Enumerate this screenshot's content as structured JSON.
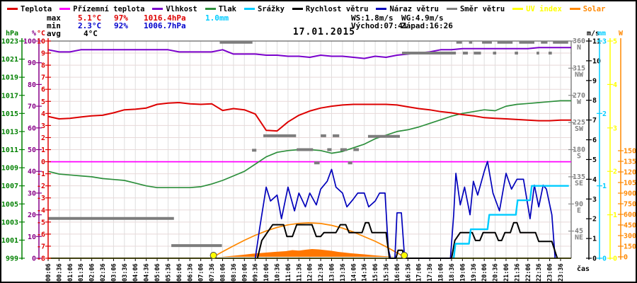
{
  "app": {
    "type": "weather-station-daily-graph"
  },
  "title": "17.01.2015",
  "legend": {
    "items": [
      {
        "label": "Teplota",
        "color": "#dd0000",
        "label_color": "#000000"
      },
      {
        "label": "Přízemní teplota",
        "color": "#ff00ff",
        "label_color": "#000000"
      },
      {
        "label": "Vlhkost",
        "color": "#7a00cc",
        "label_color": "#000000"
      },
      {
        "label": "Tlak",
        "color": "#2d8f3c",
        "label_color": "#000000"
      },
      {
        "label": "Srážky",
        "color": "#00ccff",
        "label_color": "#000000"
      },
      {
        "label": "Rychlost větru",
        "color": "#000000",
        "label_color": "#000000"
      },
      {
        "label": "Náraz větru",
        "color": "#0000bb",
        "label_color": "#000000"
      },
      {
        "label": "Směr větru",
        "color": "#808080",
        "label_color": "#000000"
      },
      {
        "label": "UV index",
        "color": "#ffff00",
        "label_color": "#ffff00"
      },
      {
        "label": "Solar",
        "color": "#ff8800",
        "label_color": "#ff8800"
      }
    ]
  },
  "stats": {
    "max": {
      "label": "max",
      "temp": "5.1°C",
      "humidity": "97%",
      "pressure": "1016.4hPa",
      "rain": "1.0mm"
    },
    "min": {
      "label": "min",
      "temp": "2.3°C",
      "humidity": "92%",
      "pressure": "1006.7hPa"
    },
    "avg": {
      "label": "avg",
      "temp": "4°C"
    },
    "wind_speed": "WS:1.8m/s",
    "wind_gust": "WG:4.9m/s",
    "sunrise": "Východ:07:41",
    "sunset": "Západ:16:26"
  },
  "xaxis": {
    "label": "čas"
  },
  "chart_data": {
    "type": "line",
    "title": "17.01.2015",
    "x_times": [
      "00:06",
      "00:36",
      "01:06",
      "01:36",
      "02:06",
      "02:36",
      "03:06",
      "03:36",
      "04:06",
      "04:36",
      "05:06",
      "05:36",
      "06:06",
      "06:36",
      "07:06",
      "07:36",
      "08:06",
      "08:36",
      "09:06",
      "09:36",
      "10:06",
      "10:36",
      "11:06",
      "11:36",
      "12:06",
      "12:36",
      "13:06",
      "13:36",
      "14:06",
      "14:36",
      "15:06",
      "15:36",
      "16:06",
      "16:36",
      "17:06",
      "17:36",
      "18:06",
      "18:36",
      "19:06",
      "19:36",
      "20:06",
      "20:36",
      "21:06",
      "21:36",
      "22:06",
      "22:36",
      "23:06",
      "23:36"
    ],
    "axes": {
      "left": [
        {
          "unit": "hPa",
          "color": "#008000",
          "min": 999,
          "max": 1023,
          "step": 2,
          "scale": "hpa"
        },
        {
          "unit": "%",
          "color": "#880088",
          "min": 0,
          "max": 100,
          "step": 10,
          "scale": "pct"
        },
        {
          "unit": "°C",
          "color": "#dd0000",
          "min": -8,
          "max": 10,
          "step": 1,
          "scale": "temp"
        }
      ],
      "right_direction": {
        "color": "#808080",
        "ticks": [
          [
            360,
            "N"
          ],
          [
            315,
            "NW"
          ],
          [
            270,
            "W"
          ],
          [
            225,
            "SW"
          ],
          [
            180,
            "S"
          ],
          [
            135,
            "SE"
          ],
          [
            90,
            "E"
          ],
          [
            45,
            "NE"
          ]
        ]
      },
      "right": [
        {
          "unit": "m/s",
          "color": "#000000",
          "min": 0,
          "max": 11,
          "step": 1,
          "scale": "ms"
        },
        {
          "unit": "mm",
          "color": "#00ccff",
          "min": 0,
          "max": 3,
          "step": 1,
          "scale": "mm"
        },
        {
          "unit": "",
          "color": "#ffff00",
          "min": 0,
          "max": 5,
          "step": 1,
          "scale": "uv"
        },
        {
          "unit": "W",
          "color": "#ff8800",
          "min": 0,
          "max": 1500,
          "step": 150,
          "scale": "watt"
        }
      ]
    },
    "series": [
      {
        "name": "Solar (měřený)",
        "scale": "watt",
        "color": "#ff7700",
        "fill": true,
        "points": [
          [
            8.0,
            0
          ],
          [
            8.5,
            12
          ],
          [
            9.0,
            28
          ],
          [
            9.5,
            45
          ],
          [
            10.0,
            58
          ],
          [
            10.5,
            70
          ],
          [
            11.0,
            80
          ],
          [
            11.3,
            95
          ],
          [
            11.6,
            88
          ],
          [
            11.9,
            100
          ],
          [
            12.2,
            110
          ],
          [
            12.5,
            105
          ],
          [
            12.8,
            95
          ],
          [
            13.1,
            85
          ],
          [
            13.4,
            70
          ],
          [
            13.7,
            60
          ],
          [
            14.0,
            50
          ],
          [
            14.3,
            42
          ],
          [
            14.6,
            35
          ],
          [
            15.0,
            22
          ],
          [
            15.4,
            12
          ],
          [
            15.8,
            5
          ],
          [
            16.1,
            0
          ]
        ]
      },
      {
        "name": "Solar (teoretický)",
        "scale": "watt",
        "color": "#ff8800",
        "points": [
          [
            7.68,
            0
          ],
          [
            8.1,
            72
          ],
          [
            8.6,
            155
          ],
          [
            9.1,
            234
          ],
          [
            9.6,
            305
          ],
          [
            10.1,
            366
          ],
          [
            10.6,
            416
          ],
          [
            11.1,
            452
          ],
          [
            11.6,
            473
          ],
          [
            12.05,
            480
          ],
          [
            12.6,
            471
          ],
          [
            13.1,
            445
          ],
          [
            13.6,
            406
          ],
          [
            14.1,
            351
          ],
          [
            14.6,
            285
          ],
          [
            15.1,
            220
          ],
          [
            15.6,
            142
          ],
          [
            16.1,
            57
          ],
          [
            16.43,
            0
          ]
        ]
      },
      {
        "name": "UV index",
        "scale": "uv",
        "color": "#ffff00",
        "constant": 0
      },
      {
        "name": "Přízemní teplota",
        "scale": "temp",
        "color": "#ff00ff",
        "constant": 0
      },
      {
        "name": "Tlak",
        "scale": "hpa",
        "color": "#2d8f3c",
        "values": [
          1008.6,
          1008.3,
          1008.2,
          1008.1,
          1008.0,
          1007.8,
          1007.7,
          1007.6,
          1007.3,
          1007.0,
          1006.8,
          1006.8,
          1006.8,
          1006.8,
          1006.9,
          1007.2,
          1007.6,
          1008.1,
          1008.6,
          1009.4,
          1010.2,
          1010.7,
          1010.9,
          1011.0,
          1011.0,
          1010.9,
          1010.6,
          1010.8,
          1011.2,
          1011.6,
          1012.2,
          1012.6,
          1013.0,
          1013.2,
          1013.5,
          1013.9,
          1014.3,
          1014.7,
          1015.0,
          1015.2,
          1015.4,
          1015.3,
          1015.8,
          1016.0,
          1016.1,
          1016.2,
          1016.3,
          1016.4
        ]
      },
      {
        "name": "Vlhkost",
        "scale": "pct",
        "color": "#7a00cc",
        "values": [
          96,
          95,
          95,
          96,
          96,
          96,
          96,
          96,
          96,
          96,
          96,
          96,
          95,
          95,
          95,
          95,
          96,
          94,
          94,
          94,
          93.5,
          93.5,
          93,
          93,
          92.5,
          93.5,
          93,
          93,
          92.5,
          92,
          93,
          92.5,
          93.5,
          94,
          94.5,
          95,
          96,
          96,
          96.5,
          96.5,
          96.5,
          96.5,
          96.5,
          96.5,
          96.5,
          97,
          97,
          97
        ]
      },
      {
        "name": "Teplota",
        "scale": "temp",
        "color": "#dd0000",
        "values": [
          3.75,
          3.55,
          3.6,
          3.7,
          3.8,
          3.85,
          4.05,
          4.3,
          4.35,
          4.45,
          4.75,
          4.85,
          4.9,
          4.8,
          4.75,
          4.8,
          4.25,
          4.4,
          4.3,
          3.95,
          2.6,
          2.55,
          3.3,
          3.85,
          4.2,
          4.45,
          4.6,
          4.7,
          4.75,
          4.75,
          4.75,
          4.75,
          4.7,
          4.55,
          4.4,
          4.3,
          4.15,
          4.05,
          3.9,
          3.8,
          3.65,
          3.6,
          3.55,
          3.5,
          3.45,
          3.4,
          3.4,
          3.45
        ]
      },
      {
        "name": "Směr větru",
        "scale": "dir",
        "color": "#7d7d7d",
        "segments": [
          [
            0.1,
            5.87,
            66
          ],
          [
            5.75,
            8.07,
            21
          ],
          [
            7.97,
            9.47,
            358
          ],
          [
            9.45,
            9.65,
            179
          ],
          [
            9.97,
            11.47,
            203
          ],
          [
            11.5,
            12.25,
            180
          ],
          [
            12.3,
            12.55,
            158
          ],
          [
            12.6,
            12.85,
            203
          ],
          [
            12.9,
            13.1,
            180
          ],
          [
            13.15,
            13.45,
            203
          ],
          [
            13.5,
            13.8,
            180
          ],
          [
            13.85,
            14.05,
            158
          ],
          [
            14.1,
            14.35,
            180
          ],
          [
            14.77,
            16.23,
            202
          ],
          [
            16.33,
            18.8,
            340
          ],
          [
            18.82,
            19.08,
            358
          ],
          [
            19.12,
            19.35,
            340
          ],
          [
            19.4,
            19.55,
            358
          ],
          [
            19.62,
            19.95,
            340
          ],
          [
            20.0,
            20.45,
            358
          ],
          [
            20.5,
            20.65,
            340
          ],
          [
            20.7,
            21.4,
            358
          ],
          [
            21.5,
            21.65,
            340
          ],
          [
            21.7,
            22.4,
            358
          ],
          [
            22.5,
            22.62,
            340
          ],
          [
            22.7,
            23.0,
            358
          ],
          [
            23.05,
            23.2,
            340
          ],
          [
            23.25,
            23.95,
            358
          ]
        ]
      },
      {
        "name": "Náraz větru",
        "scale": "ms",
        "color": "#0000bb",
        "points": [
          [
            9.6,
            0
          ],
          [
            9.8,
            1.5
          ],
          [
            10.1,
            3.6
          ],
          [
            10.3,
            2.9
          ],
          [
            10.6,
            3.2
          ],
          [
            10.8,
            2.0
          ],
          [
            11.1,
            3.6
          ],
          [
            11.4,
            2.4
          ],
          [
            11.6,
            3.3
          ],
          [
            11.9,
            2.6
          ],
          [
            12.1,
            3.3
          ],
          [
            12.4,
            2.7
          ],
          [
            12.6,
            3.5
          ],
          [
            12.9,
            3.9
          ],
          [
            13.1,
            4.5
          ],
          [
            13.3,
            3.6
          ],
          [
            13.6,
            3.3
          ],
          [
            13.8,
            2.6
          ],
          [
            14.1,
            3.0
          ],
          [
            14.3,
            3.3
          ],
          [
            14.6,
            3.3
          ],
          [
            14.8,
            2.6
          ],
          [
            15.1,
            2.9
          ],
          [
            15.3,
            3.3
          ],
          [
            15.55,
            3.3
          ],
          [
            15.7,
            0.5
          ],
          [
            15.8,
            0
          ],
          [
            16.0,
            0
          ],
          [
            16.1,
            2.3
          ],
          [
            16.3,
            2.3
          ],
          [
            16.45,
            0
          ],
          [
            18.55,
            0
          ],
          [
            18.7,
            2.2
          ],
          [
            18.8,
            4.3
          ],
          [
            19.0,
            2.7
          ],
          [
            19.2,
            3.6
          ],
          [
            19.45,
            2.2
          ],
          [
            19.6,
            3.9
          ],
          [
            19.8,
            3.2
          ],
          [
            20.1,
            4.4
          ],
          [
            20.25,
            4.9
          ],
          [
            20.5,
            3.3
          ],
          [
            20.8,
            2.4
          ],
          [
            21.1,
            4.3
          ],
          [
            21.35,
            3.5
          ],
          [
            21.6,
            4.0
          ],
          [
            21.9,
            4.0
          ],
          [
            22.2,
            2.0
          ],
          [
            22.4,
            3.7
          ],
          [
            22.6,
            2.6
          ],
          [
            22.8,
            3.7
          ],
          [
            22.95,
            3.5
          ],
          [
            23.2,
            2.2
          ],
          [
            23.35,
            0
          ]
        ]
      },
      {
        "name": "Rychlost větru",
        "scale": "ms",
        "color": "#000000",
        "points": [
          [
            9.7,
            0
          ],
          [
            9.9,
            0.9
          ],
          [
            10.15,
            1.3
          ],
          [
            10.4,
            1.7
          ],
          [
            10.9,
            1.7
          ],
          [
            11.05,
            1.1
          ],
          [
            11.3,
            1.1
          ],
          [
            11.5,
            1.7
          ],
          [
            12.2,
            1.7
          ],
          [
            12.4,
            1.1
          ],
          [
            12.6,
            1.1
          ],
          [
            12.75,
            1.3
          ],
          [
            13.3,
            1.3
          ],
          [
            13.5,
            1.7
          ],
          [
            13.75,
            1.7
          ],
          [
            13.9,
            1.3
          ],
          [
            14.5,
            1.3
          ],
          [
            14.65,
            1.8
          ],
          [
            14.8,
            1.8
          ],
          [
            14.95,
            1.3
          ],
          [
            15.6,
            1.3
          ],
          [
            15.75,
            0
          ],
          [
            16.05,
            0
          ],
          [
            16.15,
            0.4
          ],
          [
            16.35,
            0.4
          ],
          [
            16.45,
            0
          ],
          [
            18.6,
            0
          ],
          [
            18.75,
            0.9
          ],
          [
            19.0,
            1.3
          ],
          [
            19.55,
            1.3
          ],
          [
            19.7,
            0.9
          ],
          [
            19.9,
            0.9
          ],
          [
            20.05,
            1.3
          ],
          [
            20.6,
            1.3
          ],
          [
            20.75,
            0.9
          ],
          [
            20.9,
            0.9
          ],
          [
            21.05,
            1.3
          ],
          [
            21.3,
            1.3
          ],
          [
            21.45,
            1.8
          ],
          [
            21.6,
            1.8
          ],
          [
            21.75,
            1.3
          ],
          [
            22.45,
            1.3
          ],
          [
            22.6,
            0.85
          ],
          [
            23.2,
            0.85
          ],
          [
            23.45,
            0
          ]
        ]
      },
      {
        "name": "Srážky",
        "scale": "mm",
        "color": "#00ccff",
        "points": [
          [
            18.7,
            0
          ],
          [
            18.78,
            0.2
          ],
          [
            19.4,
            0.2
          ],
          [
            19.48,
            0.4
          ],
          [
            20.25,
            0.4
          ],
          [
            20.33,
            0.6
          ],
          [
            21.55,
            0.6
          ],
          [
            21.63,
            0.8
          ],
          [
            22.2,
            0.8
          ],
          [
            22.28,
            1.0
          ],
          [
            23.98,
            1.0
          ]
        ]
      }
    ],
    "sun_markers": [
      "07:41",
      "16:26"
    ],
    "grid": true
  }
}
